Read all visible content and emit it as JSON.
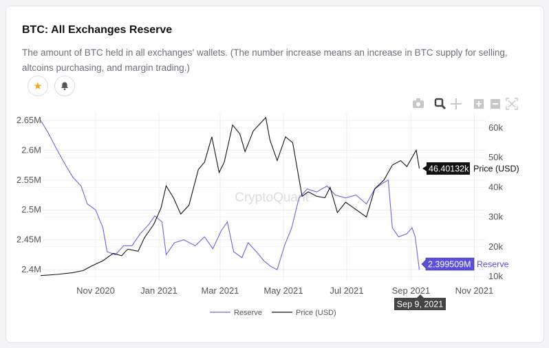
{
  "header": {
    "title": "BTC: All Exchanges Reserve",
    "description": "The amount of BTC held in all exchanges' wallets. (The number increase means an increase in BTC supply for selling, altcoins purchasing, and margin trading.)"
  },
  "actions": {
    "favorite_icon": "star-icon",
    "alert_icon": "bell-icon"
  },
  "toolbar": [
    "camera-icon",
    "zoom-icon",
    "pan-icon",
    "zoom-in-icon",
    "zoom-out-icon",
    "autoscale-icon"
  ],
  "watermark": "CryptoQuant",
  "colors": {
    "reserve": "#6b63e6",
    "price": "#111111",
    "tooltip_reserve": "#5b4fe0",
    "tooltip_price": "#111111",
    "star": "#f5a623"
  },
  "hover": {
    "date": "Sep 9, 2021",
    "reserve_label": "2.399509M",
    "reserve_name": "Reserve",
    "price_label": "46.40132k",
    "price_name": "Price (USD)"
  },
  "chart_data": {
    "type": "line",
    "x_ticks": [
      "Nov 2020",
      "Jan 2021",
      "Mar 2021",
      "May 2021",
      "Jul 2021",
      "Sep 2021",
      "Nov 2021"
    ],
    "y_left_ticks": [
      "2.4M",
      "2.45M",
      "2.5M",
      "2.55M",
      "2.6M",
      "2.65M"
    ],
    "y_right_ticks": [
      "10k",
      "20k",
      "30k",
      "40k",
      "50k",
      "60k"
    ],
    "y_left_range": [
      2.39,
      2.66
    ],
    "y_right_range": [
      8,
      65
    ],
    "grid": true,
    "legend_position": "bottom",
    "series": [
      {
        "name": "Reserve",
        "axis": "left",
        "points": [
          [
            "2020-09-09",
            2.65
          ],
          [
            "2020-09-16",
            2.63
          ],
          [
            "2020-09-25",
            2.6
          ],
          [
            "2020-10-03",
            2.575
          ],
          [
            "2020-10-10",
            2.555
          ],
          [
            "2020-10-18",
            2.54
          ],
          [
            "2020-10-24",
            2.51
          ],
          [
            "2020-11-01",
            2.5
          ],
          [
            "2020-11-08",
            2.47
          ],
          [
            "2020-11-12",
            2.43
          ],
          [
            "2020-11-20",
            2.425
          ],
          [
            "2020-11-28",
            2.44
          ],
          [
            "2020-12-06",
            2.44
          ],
          [
            "2020-12-14",
            2.46
          ],
          [
            "2020-12-22",
            2.475
          ],
          [
            "2020-12-28",
            2.49
          ],
          [
            "2021-01-04",
            2.48
          ],
          [
            "2021-01-08",
            2.425
          ],
          [
            "2021-01-16",
            2.445
          ],
          [
            "2021-01-25",
            2.45
          ],
          [
            "2021-02-05",
            2.44
          ],
          [
            "2021-02-14",
            2.455
          ],
          [
            "2021-02-22",
            2.435
          ],
          [
            "2021-03-02",
            2.465
          ],
          [
            "2021-03-08",
            2.48
          ],
          [
            "2021-03-14",
            2.43
          ],
          [
            "2021-03-22",
            2.42
          ],
          [
            "2021-03-28",
            2.445
          ],
          [
            "2021-04-05",
            2.43
          ],
          [
            "2021-04-12",
            2.415
          ],
          [
            "2021-04-19",
            2.405
          ],
          [
            "2021-04-25",
            2.4
          ],
          [
            "2021-05-02",
            2.44
          ],
          [
            "2021-05-09",
            2.47
          ],
          [
            "2021-05-16",
            2.52
          ],
          [
            "2021-05-24",
            2.535
          ],
          [
            "2021-06-02",
            2.53
          ],
          [
            "2021-06-12",
            2.54
          ],
          [
            "2021-06-20",
            2.525
          ],
          [
            "2021-06-30",
            2.52
          ],
          [
            "2021-07-10",
            2.525
          ],
          [
            "2021-07-20",
            2.51
          ],
          [
            "2021-07-28",
            2.535
          ],
          [
            "2021-08-05",
            2.545
          ],
          [
            "2021-08-10",
            2.55
          ],
          [
            "2021-08-14",
            2.47
          ],
          [
            "2021-08-20",
            2.455
          ],
          [
            "2021-08-28",
            2.46
          ],
          [
            "2021-09-02",
            2.47
          ],
          [
            "2021-09-05",
            2.455
          ],
          [
            "2021-09-09",
            2.399509
          ]
        ]
      },
      {
        "name": "Price (USD)",
        "axis": "right",
        "points": [
          [
            "2020-09-09",
            10.3
          ],
          [
            "2020-09-25",
            10.7
          ],
          [
            "2020-10-10",
            11.3
          ],
          [
            "2020-10-20",
            12.0
          ],
          [
            "2020-10-28",
            13.5
          ],
          [
            "2020-11-08",
            15.3
          ],
          [
            "2020-11-18",
            17.8
          ],
          [
            "2020-11-26",
            17.0
          ],
          [
            "2020-12-02",
            19.2
          ],
          [
            "2020-12-12",
            18.5
          ],
          [
            "2020-12-18",
            23.0
          ],
          [
            "2020-12-27",
            27.5
          ],
          [
            "2021-01-03",
            33.0
          ],
          [
            "2021-01-08",
            40.5
          ],
          [
            "2021-01-15",
            36.5
          ],
          [
            "2021-01-22",
            31.0
          ],
          [
            "2021-01-30",
            34.0
          ],
          [
            "2021-02-08",
            46.0
          ],
          [
            "2021-02-14",
            48.5
          ],
          [
            "2021-02-21",
            57.0
          ],
          [
            "2021-02-28",
            45.0
          ],
          [
            "2021-03-05",
            48.5
          ],
          [
            "2021-03-13",
            61.0
          ],
          [
            "2021-03-20",
            58.0
          ],
          [
            "2021-03-25",
            52.0
          ],
          [
            "2021-04-02",
            59.0
          ],
          [
            "2021-04-14",
            63.5
          ],
          [
            "2021-04-18",
            56.0
          ],
          [
            "2021-04-25",
            49.0
          ],
          [
            "2021-05-03",
            57.0
          ],
          [
            "2021-05-10",
            55.0
          ],
          [
            "2021-05-13",
            49.0
          ],
          [
            "2021-05-19",
            37.0
          ],
          [
            "2021-05-25",
            38.5
          ],
          [
            "2021-06-02",
            37.0
          ],
          [
            "2021-06-10",
            36.5
          ],
          [
            "2021-06-15",
            40.0
          ],
          [
            "2021-06-22",
            31.5
          ],
          [
            "2021-06-30",
            35.0
          ],
          [
            "2021-07-08",
            33.0
          ],
          [
            "2021-07-20",
            30.0
          ],
          [
            "2021-07-28",
            39.5
          ],
          [
            "2021-08-06",
            42.5
          ],
          [
            "2021-08-14",
            47.5
          ],
          [
            "2021-08-22",
            49.0
          ],
          [
            "2021-08-28",
            47.0
          ],
          [
            "2021-09-06",
            52.5
          ],
          [
            "2021-09-09",
            46.4
          ]
        ]
      }
    ]
  }
}
